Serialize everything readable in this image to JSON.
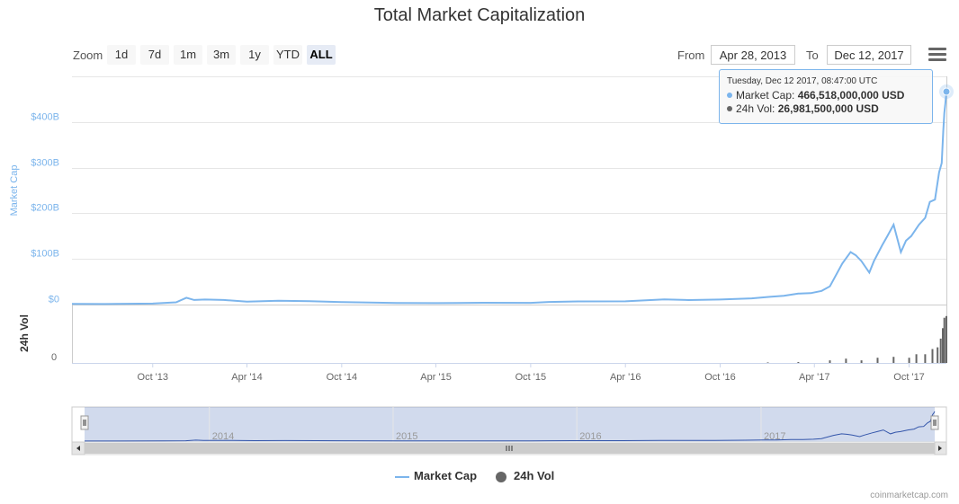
{
  "title": "Total Market Capitalization",
  "zoom": {
    "label": "Zoom",
    "buttons": [
      {
        "label": "1d",
        "active": false
      },
      {
        "label": "7d",
        "active": false
      },
      {
        "label": "1m",
        "active": false
      },
      {
        "label": "3m",
        "active": false
      },
      {
        "label": "1y",
        "active": false
      },
      {
        "label": "YTD",
        "active": false
      },
      {
        "label": "ALL",
        "active": true
      }
    ]
  },
  "range": {
    "from_label": "From",
    "from_value": "Apr 28, 2013",
    "to_label": "To",
    "to_value": "Dec 12, 2017"
  },
  "tooltip": {
    "date": "Tuesday, Dec 12 2017, 08:47:00 UTC",
    "rows": [
      {
        "name": "Market Cap",
        "value": "466,518,000,000 USD",
        "color": "#7cb5ec"
      },
      {
        "name": "24h Vol",
        "value": "26,981,500,000 USD",
        "color": "#666666"
      }
    ]
  },
  "legend": [
    {
      "name": "Market Cap",
      "color": "#7cb5ec",
      "symbol": "line"
    },
    {
      "name": "24h Vol",
      "color": "#666666",
      "symbol": "circle"
    }
  ],
  "credits": "coinmarketcap.com",
  "colors": {
    "market_cap": "#7cb5ec",
    "volume": "#666666",
    "navigator_fill": "rgba(102,133,194,0.3)",
    "navigator_line": "#3355aa"
  },
  "chart_data": {
    "type": "line",
    "title": "Total Market Capitalization",
    "x_type": "datetime",
    "x_range": [
      "2013-04-28",
      "2017-12-12"
    ],
    "x_ticks": [
      {
        "date": "2013-10-01",
        "label": "Oct '13"
      },
      {
        "date": "2014-04-01",
        "label": "Apr '14"
      },
      {
        "date": "2014-10-01",
        "label": "Oct '14"
      },
      {
        "date": "2015-04-01",
        "label": "Apr '15"
      },
      {
        "date": "2015-10-01",
        "label": "Oct '15"
      },
      {
        "date": "2016-04-01",
        "label": "Apr '16"
      },
      {
        "date": "2016-10-01",
        "label": "Oct '16"
      },
      {
        "date": "2017-04-01",
        "label": "Apr '17"
      },
      {
        "date": "2017-10-01",
        "label": "Oct '17"
      }
    ],
    "navigator_ticks": [
      {
        "date": "2014-01-01",
        "label": "2014"
      },
      {
        "date": "2015-01-01",
        "label": "2015"
      },
      {
        "date": "2016-01-01",
        "label": "2016"
      },
      {
        "date": "2017-01-01",
        "label": "2017"
      }
    ],
    "y_axis": {
      "label": "Market Cap",
      "unit": "USD billions",
      "range": [
        0,
        466.518
      ],
      "ticks": [
        {
          "value": 0,
          "label": "$0"
        },
        {
          "value": 100,
          "label": "$100B"
        },
        {
          "value": 200,
          "label": "$200B"
        },
        {
          "value": 300,
          "label": "$300B"
        },
        {
          "value": 400,
          "label": "$400B"
        }
      ]
    },
    "volume_axis": {
      "label": "24h Vol",
      "unit": "USD billions",
      "range": [
        0,
        30
      ],
      "ticks": [
        {
          "value": 0,
          "label": "0"
        }
      ]
    },
    "series": [
      {
        "name": "Market Cap",
        "color": "#7cb5ec",
        "points": [
          [
            "2013-04-28",
            1.6
          ],
          [
            "2013-07-01",
            1.2
          ],
          [
            "2013-10-01",
            2.2
          ],
          [
            "2013-11-15",
            5.0
          ],
          [
            "2013-12-05",
            15.0
          ],
          [
            "2013-12-20",
            10.0
          ],
          [
            "2014-01-10",
            11.0
          ],
          [
            "2014-02-15",
            10.0
          ],
          [
            "2014-04-01",
            6.5
          ],
          [
            "2014-06-01",
            8.5
          ],
          [
            "2014-08-01",
            7.5
          ],
          [
            "2014-10-01",
            5.5
          ],
          [
            "2015-01-15",
            3.5
          ],
          [
            "2015-04-01",
            3.2
          ],
          [
            "2015-07-01",
            4.0
          ],
          [
            "2015-10-01",
            3.7
          ],
          [
            "2015-11-05",
            5.8
          ],
          [
            "2016-01-01",
            6.8
          ],
          [
            "2016-04-01",
            7.0
          ],
          [
            "2016-06-15",
            11.5
          ],
          [
            "2016-08-01",
            9.8
          ],
          [
            "2016-10-01",
            11.0
          ],
          [
            "2016-12-01",
            13.5
          ],
          [
            "2017-01-05",
            17.0
          ],
          [
            "2017-02-01",
            19.0
          ],
          [
            "2017-03-01",
            24.0
          ],
          [
            "2017-03-25",
            25.0
          ],
          [
            "2017-04-15",
            30.0
          ],
          [
            "2017-05-01",
            40.0
          ],
          [
            "2017-05-25",
            90.0
          ],
          [
            "2017-06-10",
            115.0
          ],
          [
            "2017-06-20",
            108.0
          ],
          [
            "2017-07-01",
            95.0
          ],
          [
            "2017-07-16",
            70.0
          ],
          [
            "2017-07-25",
            95.0
          ],
          [
            "2017-08-10",
            130.0
          ],
          [
            "2017-08-20",
            150.0
          ],
          [
            "2017-09-01",
            175.0
          ],
          [
            "2017-09-15",
            115.0
          ],
          [
            "2017-09-25",
            140.0
          ],
          [
            "2017-10-05",
            150.0
          ],
          [
            "2017-10-20",
            175.0
          ],
          [
            "2017-11-01",
            190.0
          ],
          [
            "2017-11-10",
            225.0
          ],
          [
            "2017-11-20",
            230.0
          ],
          [
            "2017-11-28",
            290.0
          ],
          [
            "2017-12-03",
            310.0
          ],
          [
            "2017-12-06",
            380.0
          ],
          [
            "2017-12-08",
            420.0
          ],
          [
            "2017-12-10",
            440.0
          ],
          [
            "2017-12-12",
            466.518
          ]
        ]
      },
      {
        "name": "24h Vol",
        "color": "#666666",
        "points": [
          [
            "2013-04-28",
            0.02
          ],
          [
            "2014-06-01",
            0.05
          ],
          [
            "2015-06-01",
            0.05
          ],
          [
            "2016-06-01",
            0.15
          ],
          [
            "2017-01-01",
            0.3
          ],
          [
            "2017-03-01",
            0.5
          ],
          [
            "2017-05-01",
            1.5
          ],
          [
            "2017-06-01",
            2.5
          ],
          [
            "2017-07-01",
            1.5
          ],
          [
            "2017-08-01",
            3.0
          ],
          [
            "2017-09-01",
            3.5
          ],
          [
            "2017-10-01",
            3.0
          ],
          [
            "2017-10-15",
            5.0
          ],
          [
            "2017-11-01",
            5.0
          ],
          [
            "2017-11-15",
            8.0
          ],
          [
            "2017-11-25",
            9.0
          ],
          [
            "2017-12-01",
            14.0
          ],
          [
            "2017-12-05",
            20.0
          ],
          [
            "2017-12-08",
            26.0
          ],
          [
            "2017-12-12",
            26.98
          ]
        ]
      }
    ],
    "navigator": {
      "range": [
        "2013-04-28",
        "2017-12-12"
      ]
    },
    "legend_position": "bottom-center",
    "grid": true
  }
}
